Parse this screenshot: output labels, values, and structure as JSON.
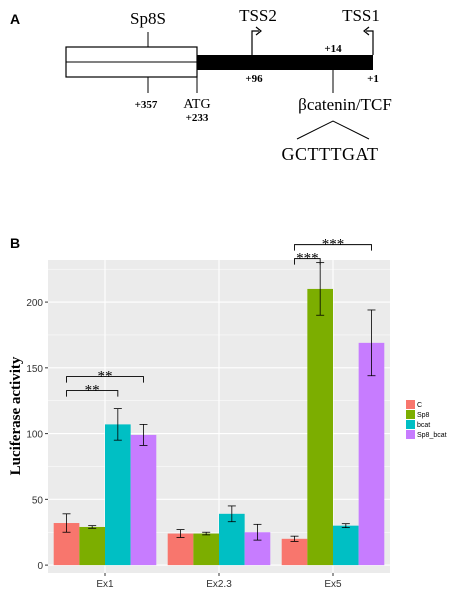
{
  "panel_a": {
    "letter": "A",
    "sp8s_label": "Sp8S",
    "tss2_label": "TSS2",
    "tss1_label": "TSS1",
    "pos_357": "+357",
    "atg": "ATG",
    "pos_233": "+233",
    "pos_96": "+96",
    "pos_14": "+14",
    "pos_1": "+1",
    "site_label": "βcatenin/TCF",
    "sequence": "GCTTTGAT"
  },
  "panel_b": {
    "letter": "B"
  },
  "colors": {
    "C": "#F8766D",
    "Sp8": "#7CAE00",
    "bcat": "#00BFC4",
    "Sp8_bcat": "#C77CFF",
    "panel_bg": "#EBEBEB",
    "grid": "#FFFFFF"
  },
  "chart_data": {
    "type": "bar",
    "categories": [
      "Ex1",
      "Ex2.3",
      "Ex5"
    ],
    "series": [
      {
        "name": "C",
        "values": [
          32,
          24,
          20
        ],
        "errors": [
          7,
          3,
          2
        ]
      },
      {
        "name": "Sp8",
        "values": [
          29,
          24,
          210
        ],
        "errors": [
          1,
          1,
          20
        ]
      },
      {
        "name": "bcat",
        "values": [
          107,
          39,
          30
        ],
        "errors": [
          12,
          6,
          1.5
        ]
      },
      {
        "name": "Sp8_bcat",
        "values": [
          99,
          25,
          169
        ],
        "errors": [
          8,
          6,
          25
        ]
      }
    ],
    "ylabel": "Luciferase activity",
    "xlabel": "",
    "ylim": [
      -6,
      232
    ],
    "yticks": [
      0,
      50,
      100,
      150,
      200
    ],
    "legend_position": "right",
    "grid": true,
    "significance": [
      {
        "category": "Ex1",
        "from": "C",
        "to": "bcat",
        "label": "**"
      },
      {
        "category": "Ex1",
        "from": "C",
        "to": "Sp8_bcat",
        "label": "**"
      },
      {
        "category": "Ex5",
        "from": "C",
        "to": "Sp8",
        "label": "***"
      },
      {
        "category": "Ex5",
        "from": "C",
        "to": "Sp8_bcat",
        "label": "***"
      }
    ]
  }
}
